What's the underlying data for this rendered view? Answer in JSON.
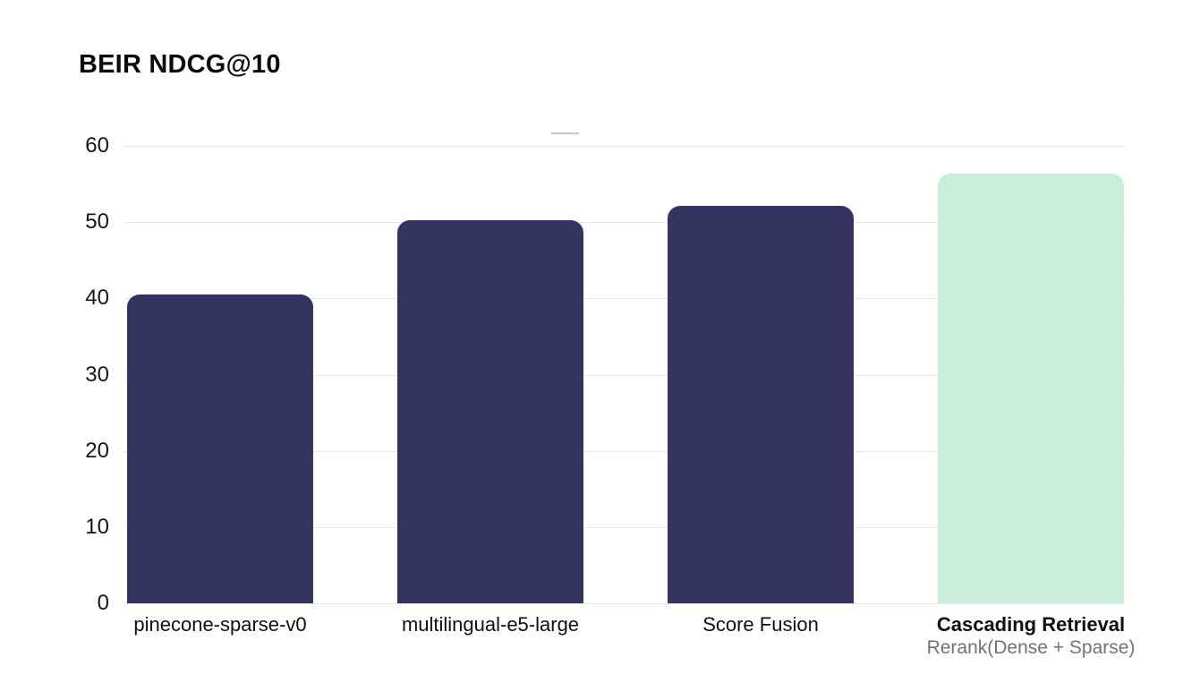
{
  "title": "BEIR NDCG@10",
  "chart_data": {
    "type": "bar",
    "title": "BEIR NDCG@10",
    "categories": [
      "pinecone-sparse-v0",
      "multilingual-e5-large",
      "Score Fusion",
      "Cascading Retrieval"
    ],
    "category_subtitles": [
      "",
      "",
      "",
      "Rerank(Dense + Sparse)"
    ],
    "values": [
      40.5,
      50.3,
      52.1,
      56.4
    ],
    "bar_colors": [
      "#363360",
      "#363360",
      "#363360",
      "#C9EFDC"
    ],
    "xlabel": "",
    "ylabel": "",
    "ylim": [
      0,
      60
    ],
    "yticks": [
      0,
      10,
      20,
      30,
      40,
      50,
      60
    ],
    "grid": true,
    "legend": "none"
  },
  "colors": {
    "background": "#FFFFFF",
    "bar_dark": "#363360",
    "bar_mint": "#C9EFDC",
    "gridline": "#E6E6E9",
    "y_tick_label": "#141419",
    "category_label": "#101014",
    "category_subtitle": "#71717A",
    "dash_mark": "#C5C5C9"
  }
}
